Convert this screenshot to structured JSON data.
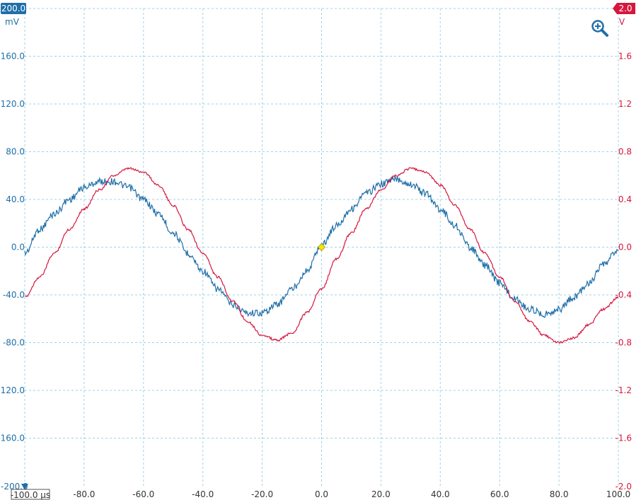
{
  "app": {
    "zoom_icon": "zoom-in-magnifier-icon"
  },
  "chart_data": {
    "type": "line",
    "x_unit_label": "µs",
    "x_origin_label": "-100.0 µs",
    "xlim": [
      -100,
      100
    ],
    "x_ticks": [
      "-80.0",
      "-60.0",
      "-40.0",
      "-20.0",
      "0.0",
      "20.0",
      "40.0",
      "60.0",
      "80.0",
      "100.0"
    ],
    "x_tick_values": [
      -80,
      -60,
      -40,
      -20,
      0,
      20,
      40,
      60,
      80,
      100
    ],
    "grid": true,
    "left_axis": {
      "unit": "mV",
      "range_badge": "200.0",
      "bottom_badge": "-200.0",
      "ylim": [
        -200,
        200
      ],
      "color": "#1f6fa8",
      "ticks": [
        "160.0",
        "120.0",
        "80.0",
        "40.0",
        "0.0",
        "-40.0",
        "-80.0",
        "-120.0",
        "-160.0"
      ],
      "tick_values": [
        160,
        120,
        80,
        40,
        0,
        -40,
        -80,
        -120,
        -160
      ]
    },
    "right_axis": {
      "unit": "V",
      "range_badge": "2.0",
      "bottom_label": "-2.0",
      "ylim": [
        -2,
        2
      ],
      "color": "#d6163e",
      "ticks": [
        "1.6",
        "1.2",
        "0.8",
        "0.4",
        "0.0",
        "-0.4",
        "-0.8",
        "-1.2",
        "-1.6"
      ],
      "tick_values": [
        1.6,
        1.2,
        0.8,
        0.4,
        0,
        -0.4,
        -0.8,
        -1.2,
        -1.6
      ]
    },
    "series": [
      {
        "axis": "left",
        "color": "#1f6fa8",
        "x": [
          -100,
          -95,
          -90,
          -85,
          -80,
          -75,
          -70,
          -65,
          -60,
          -55,
          -50,
          -45,
          -40,
          -35,
          -30,
          -25,
          -20,
          -15,
          -10,
          -5,
          0,
          5,
          10,
          15,
          20,
          25,
          30,
          35,
          40,
          45,
          50,
          55,
          60,
          65,
          70,
          75,
          80,
          85,
          90,
          95,
          100
        ],
        "values": [
          -5,
          15,
          28,
          40,
          50,
          55,
          55,
          50,
          40,
          28,
          12,
          -5,
          -20,
          -35,
          -48,
          -55,
          -55,
          -48,
          -35,
          -20,
          2,
          18,
          32,
          45,
          53,
          57,
          53,
          45,
          32,
          18,
          0,
          -15,
          -30,
          -43,
          -52,
          -56,
          -52,
          -42,
          -30,
          -15,
          -2
        ]
      },
      {
        "axis": "right",
        "color": "#d6163e",
        "x": [
          -100,
          -95,
          -90,
          -85,
          -80,
          -75,
          -70,
          -65,
          -60,
          -55,
          -50,
          -45,
          -40,
          -35,
          -30,
          -25,
          -20,
          -15,
          -10,
          -5,
          0,
          5,
          10,
          15,
          20,
          25,
          30,
          35,
          40,
          45,
          50,
          55,
          60,
          65,
          70,
          75,
          80,
          85,
          90,
          95,
          100
        ],
        "values": [
          -0.42,
          -0.25,
          -0.05,
          0.15,
          0.32,
          0.48,
          0.6,
          0.66,
          0.63,
          0.52,
          0.35,
          0.15,
          -0.05,
          -0.25,
          -0.45,
          -0.62,
          -0.74,
          -0.78,
          -0.72,
          -0.55,
          -0.35,
          -0.1,
          0.12,
          0.32,
          0.48,
          0.6,
          0.66,
          0.63,
          0.52,
          0.35,
          0.15,
          -0.05,
          -0.25,
          -0.45,
          -0.62,
          -0.74,
          -0.8,
          -0.76,
          -0.65,
          -0.52,
          -0.42
        ]
      }
    ],
    "trigger_marker": {
      "x": 0,
      "y": 0,
      "color": "#f7e600"
    }
  }
}
